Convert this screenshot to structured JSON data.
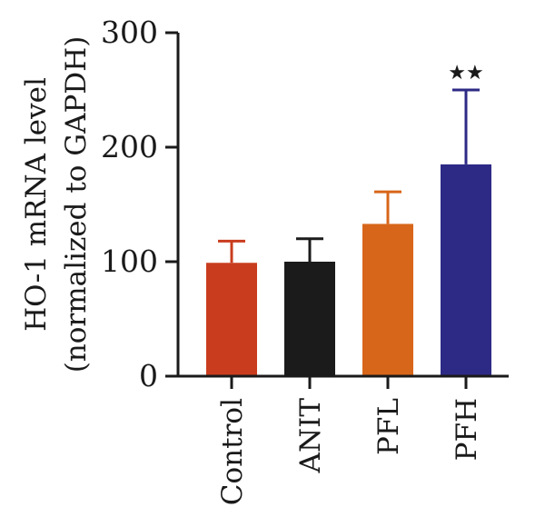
{
  "chart_data": {
    "type": "bar",
    "ylabel_lines": [
      "HO-1 mRNA level",
      "(normalized to GAPDH)"
    ],
    "xlabel": "",
    "ylim": [
      0,
      300
    ],
    "yticks": [
      0,
      100,
      200,
      300
    ],
    "categories": [
      "Control",
      "ANIT",
      "PFL",
      "PFH"
    ],
    "values": [
      99,
      100,
      133,
      185
    ],
    "error_upper": [
      118,
      120,
      161,
      250
    ],
    "colors": [
      "#c93d1e",
      "#1b1b1b",
      "#d8661a",
      "#2d2a86"
    ],
    "annotations": [
      {
        "category": "PFH",
        "text": "★★"
      }
    ]
  }
}
